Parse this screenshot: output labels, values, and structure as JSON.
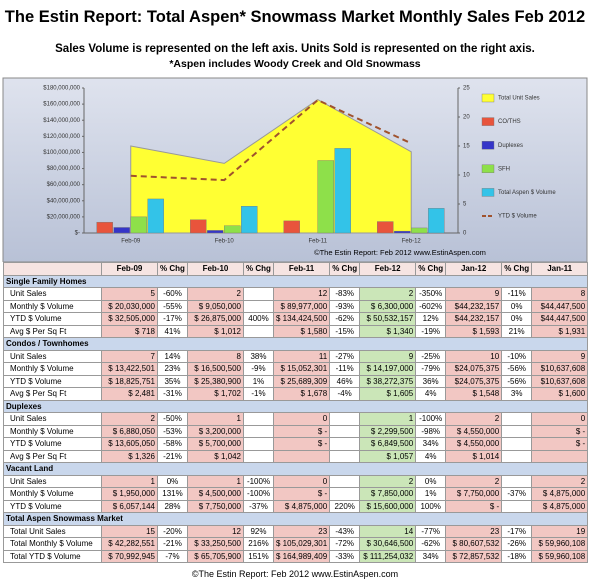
{
  "header": {
    "title": "The Estin Report: Total Aspen* Snowmass Market Monthly Sales Feb 2012",
    "subtitle": "Sales Volume is represented on the left axis.  Units Sold is represented on the right axis.",
    "note": "*Aspen includes Woody Creek and Old Snowmass"
  },
  "chart_data": {
    "type": "combo",
    "categories": [
      "Feb-09",
      "Feb-10",
      "Feb-11",
      "Feb-12"
    ],
    "ylim": [
      0,
      180000000
    ],
    "yticks": [
      {
        "value": 0,
        "label": "$-"
      },
      {
        "value": 20000000,
        "label": "$20,000,000"
      },
      {
        "value": 40000000,
        "label": "$40,000,000"
      },
      {
        "value": 60000000,
        "label": "$60,000,000"
      },
      {
        "value": 80000000,
        "label": "$80,000,000"
      },
      {
        "value": 100000000,
        "label": "$100,000,000"
      },
      {
        "value": 120000000,
        "label": "$120,000,000"
      },
      {
        "value": 140000000,
        "label": "$140,000,000"
      },
      {
        "value": 160000000,
        "label": "$160,000,000"
      },
      {
        "value": 180000000,
        "label": "$180,000,000"
      }
    ],
    "y2lim": [
      0,
      25
    ],
    "y2ticks": [
      0,
      5,
      10,
      15,
      20,
      25
    ],
    "grid": false,
    "legend": "right",
    "series": [
      {
        "name": "Total Unit Sales",
        "type": "area",
        "axis": "y2",
        "color": "#ffff33",
        "values": [
          15,
          12,
          23,
          14
        ]
      },
      {
        "name": "CO/THS",
        "type": "bar",
        "color": "#e8543c",
        "values": [
          13422501,
          16500500,
          15052301,
          14197000
        ]
      },
      {
        "name": "Duplexes",
        "type": "bar",
        "color": "#3535c8",
        "values": [
          6880050,
          3200000,
          0,
          2299500
        ]
      },
      {
        "name": "SFH",
        "type": "bar",
        "color": "#8ee04a",
        "values": [
          20030000,
          9050000,
          89977000,
          6300000
        ]
      },
      {
        "name": "Total Aspen $ Volume",
        "type": "bar",
        "color": "#33c3e8",
        "values": [
          42282551,
          33250500,
          105029301,
          30646500
        ]
      },
      {
        "name": "YTD $ Volume",
        "type": "line",
        "color": "#a0522d",
        "values": [
          70992945,
          65705900,
          164989409,
          111254032
        ]
      }
    ],
    "source": "©The Estin Report: Feb 2012  www.EstinAspen.com"
  },
  "table": {
    "columns": [
      "Feb-09",
      "% Chg",
      "Feb-10",
      "% Chg",
      "Feb-11",
      "% Chg",
      "Feb-12",
      "% Chg",
      "Jan-12",
      "% Chg",
      "Jan-11"
    ],
    "sections": [
      {
        "title": "Single Family Homes",
        "rows": [
          {
            "label": "Unit Sales",
            "cells": [
              "5",
              "-60%",
              "2",
              null,
              "12",
              "-83%",
              "2",
              "-350%",
              "9",
              "-11%",
              "8"
            ]
          },
          {
            "label": "Monthly $ Volume",
            "cells": [
              "$ 20,030,000",
              "-55%",
              "$ 9,050,000",
              null,
              "$ 89,977,000",
              "-93%",
              "$ 6,300,000",
              "-602%",
              "$44,232,157",
              "0%",
              "$44,447,500"
            ]
          },
          {
            "label": "YTD $ Volume",
            "cells": [
              "$ 32,505,000",
              "-17%",
              "$ 26,875,000",
              "400%",
              "$ 134,424,500",
              "-62%",
              "$ 50,532,157",
              "12%",
              "$44,232,157",
              "0%",
              "$44,447,500"
            ]
          },
          {
            "label": "Avg $ Per Sq Ft",
            "cells": [
              "$ 718",
              "41%",
              "$ 1,012",
              null,
              "$ 1,580",
              "-15%",
              "$ 1,340",
              "-19%",
              "$ 1,593",
              "21%",
              "$ 1,931"
            ]
          }
        ]
      },
      {
        "title": "Condos / Townhomes",
        "rows": [
          {
            "label": "Unit Sales",
            "cells": [
              "7",
              "14%",
              "8",
              "38%",
              "11",
              "-27%",
              "9",
              "-25%",
              "10",
              "-10%",
              "9"
            ]
          },
          {
            "label": "Monthly $ Volume",
            "cells": [
              "$ 13,422,501",
              "23%",
              "$ 16,500,500",
              "-9%",
              "$ 15,052,301",
              "-11%",
              "$ 14,197,000",
              "-79%",
              "$24,075,375",
              "-56%",
              "$10,637,608"
            ]
          },
          {
            "label": "YTD $ Volume",
            "cells": [
              "$ 18,825,751",
              "35%",
              "$ 25,380,900",
              "1%",
              "$ 25,689,309",
              "46%",
              "$ 38,272,375",
              "36%",
              "$24,075,375",
              "-56%",
              "$10,637,608"
            ]
          },
          {
            "label": "Avg $ Per Sq Ft",
            "cells": [
              "$ 2,481",
              "-31%",
              "$ 1,702",
              "-1%",
              "$ 1,678",
              "-4%",
              "$ 1,605",
              "4%",
              "$ 1,548",
              "3%",
              "$ 1,600"
            ]
          }
        ]
      },
      {
        "title": "Duplexes",
        "rows": [
          {
            "label": "Unit Sales",
            "cells": [
              "2",
              "-50%",
              "1",
              null,
              "0",
              null,
              "1",
              "-100%",
              "2",
              null,
              "0"
            ]
          },
          {
            "label": "Monthly $ Volume",
            "cells": [
              "$ 6,880,050",
              "-53%",
              "$ 3,200,000",
              null,
              "$ -",
              null,
              "$ 2,299,500",
              "-98%",
              "$ 4,550,000",
              null,
              "$ -"
            ]
          },
          {
            "label": "YTD $ Volume",
            "cells": [
              "$ 13,605,050",
              "-58%",
              "$ 5,700,000",
              null,
              "$ -",
              null,
              "$ 6,849,500",
              "34%",
              "$ 4,550,000",
              null,
              "$ -"
            ]
          },
          {
            "label": "Avg $ Per Sq Ft",
            "cells": [
              "$ 1,326",
              "-21%",
              "$ 1,042",
              null,
              null,
              null,
              "$ 1,057",
              "4%",
              "$ 1,014",
              null,
              null
            ]
          }
        ]
      },
      {
        "title": "Vacant Land",
        "rows": [
          {
            "label": "Unit Sales",
            "cells": [
              "1",
              "0%",
              "1",
              "-100%",
              "0",
              null,
              "2",
              "0%",
              "2",
              null,
              "2"
            ]
          },
          {
            "label": "Monthly $ Volume",
            "cells": [
              "$ 1,950,000",
              "131%",
              "$ 4,500,000",
              "-100%",
              "$ -",
              null,
              "$ 7,850,000",
              "1%",
              "$ 7,750,000",
              "-37%",
              "$ 4,875,000"
            ]
          },
          {
            "label": "YTD $ Volume",
            "cells": [
              "$ 6,057,144",
              "28%",
              "$ 7,750,000",
              "-37%",
              "$ 4,875,000",
              "220%",
              "$ 15,600,000",
              "100%",
              "$ -",
              null,
              "$ 4,875,000"
            ]
          }
        ]
      },
      {
        "title": "Total Aspen Snowmass Market",
        "rows": [
          {
            "label": "Total Unit Sales",
            "cells": [
              "15",
              "-20%",
              "12",
              "92%",
              "23",
              "-43%",
              "14",
              "-77%",
              "23",
              "-17%",
              "19"
            ]
          },
          {
            "label": "Total Monthly $ Volume",
            "cells": [
              "$ 42,282,551",
              "-21%",
              "$ 33,250,500",
              "216%",
              "$ 105,029,301",
              "-72%",
              "$ 30,646,500",
              "-62%",
              "$ 80,607,532",
              "-26%",
              "$ 59,960,108"
            ]
          },
          {
            "label": "Total YTD $ Volume",
            "cells": [
              "$ 70,992,945",
              "-7%",
              "$ 65,705,900",
              "151%",
              "$ 164,989,409",
              "-33%",
              "$ 111,254,032",
              "34%",
              "$ 72,857,532",
              "-18%",
              "$ 59,960,108"
            ]
          }
        ]
      }
    ]
  },
  "footer": "©The Estin Report: Feb 2012  www.EstinAspen.com"
}
